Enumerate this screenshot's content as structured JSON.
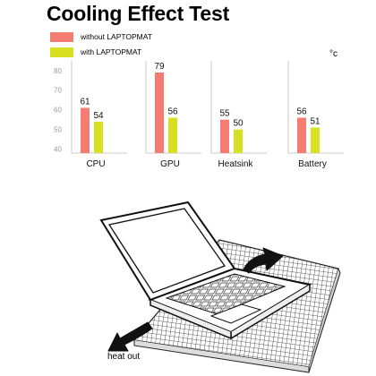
{
  "chart_data": {
    "type": "bar",
    "title": "Cooling Effect Test",
    "unit": "°c",
    "categories": [
      "CPU",
      "GPU",
      "Heatsink",
      "Battery"
    ],
    "series": [
      {
        "name": "without LAPTOPMAT",
        "color": "#f47c72",
        "values": [
          61,
          79,
          55,
          56
        ]
      },
      {
        "name": "with LAPTOPMAT",
        "color": "#d8e022",
        "values": [
          54,
          56,
          50,
          51
        ]
      }
    ],
    "yticks": [
      40,
      50,
      60,
      70,
      80
    ],
    "ylim": [
      38,
      84
    ],
    "grid": false,
    "legend_position": "top-left"
  },
  "illustration": {
    "label": "heat out",
    "icons": [
      "laptop-icon",
      "cooling-mat-icon",
      "heat-arrow-icon"
    ]
  }
}
